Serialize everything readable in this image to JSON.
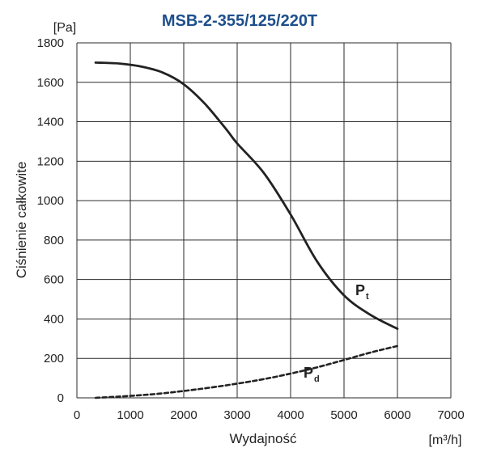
{
  "chart_data": {
    "type": "line",
    "title": "MSB-2-355/125/220T",
    "xlabel": "Wydajność",
    "ylabel": "Ciśnienie całkowite",
    "x_unit": "[m³/h]",
    "y_unit": "[Pa]",
    "xlim": [
      0,
      7000
    ],
    "ylim": [
      0,
      1800
    ],
    "x_ticks": [
      "0",
      "1000",
      "2000",
      "3000",
      "4000",
      "5000",
      "6000",
      "7000"
    ],
    "y_ticks": [
      "0",
      "200",
      "400",
      "600",
      "800",
      "1000",
      "1200",
      "1400",
      "1600",
      "1800"
    ],
    "grid": true,
    "series": [
      {
        "name": "Pt",
        "name_main": "P",
        "name_sub": "t",
        "style": "solid",
        "color": "#222222",
        "x": [
          350,
          800,
          1200,
          1600,
          2000,
          2400,
          2800,
          3000,
          3500,
          4000,
          4500,
          5000,
          5500,
          6000
        ],
        "values": [
          1700,
          1695,
          1680,
          1650,
          1590,
          1490,
          1360,
          1290,
          1140,
          930,
          690,
          520,
          420,
          350
        ]
      },
      {
        "name": "Pd",
        "name_main": "P",
        "name_sub": "d",
        "style": "dashed",
        "color": "#222222",
        "x": [
          350,
          1000,
          1500,
          2000,
          2500,
          3000,
          3500,
          4000,
          4500,
          5000,
          5500,
          6000
        ],
        "values": [
          0,
          10,
          20,
          35,
          52,
          72,
          95,
          123,
          155,
          192,
          230,
          263
        ]
      }
    ]
  }
}
